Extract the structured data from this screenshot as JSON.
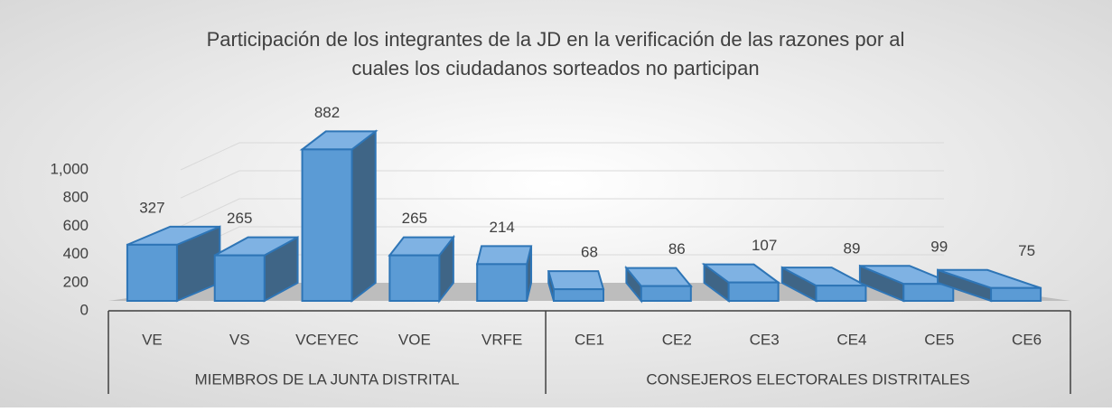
{
  "chart_data": {
    "type": "bar3d",
    "title": [
      "Participación de los integrantes de la JD en la verificación de las razones por al",
      "cuales los ciudadanos sorteados no participan"
    ],
    "categories": [
      "VE",
      "VS",
      "VCEYEC",
      "VOE",
      "VRFE",
      "CE1",
      "CE2",
      "CE3",
      "CE4",
      "CE5",
      "CE6"
    ],
    "groups": [
      {
        "name": "MIEMBROS DE LA JUNTA DISTRITAL",
        "size": 5
      },
      {
        "name": "CONSEJEROS ELECTORALES DISTRITALES",
        "size": 6
      }
    ],
    "values": [
      327,
      265,
      882,
      265,
      214,
      68,
      86,
      107,
      89,
      99,
      75
    ],
    "color": "#5b9bd5",
    "ylim": [
      0,
      1000
    ],
    "yticks": [
      0,
      200,
      400,
      600,
      800,
      {
        "value": 1000,
        "label": "1,000"
      }
    ],
    "grid": true
  }
}
